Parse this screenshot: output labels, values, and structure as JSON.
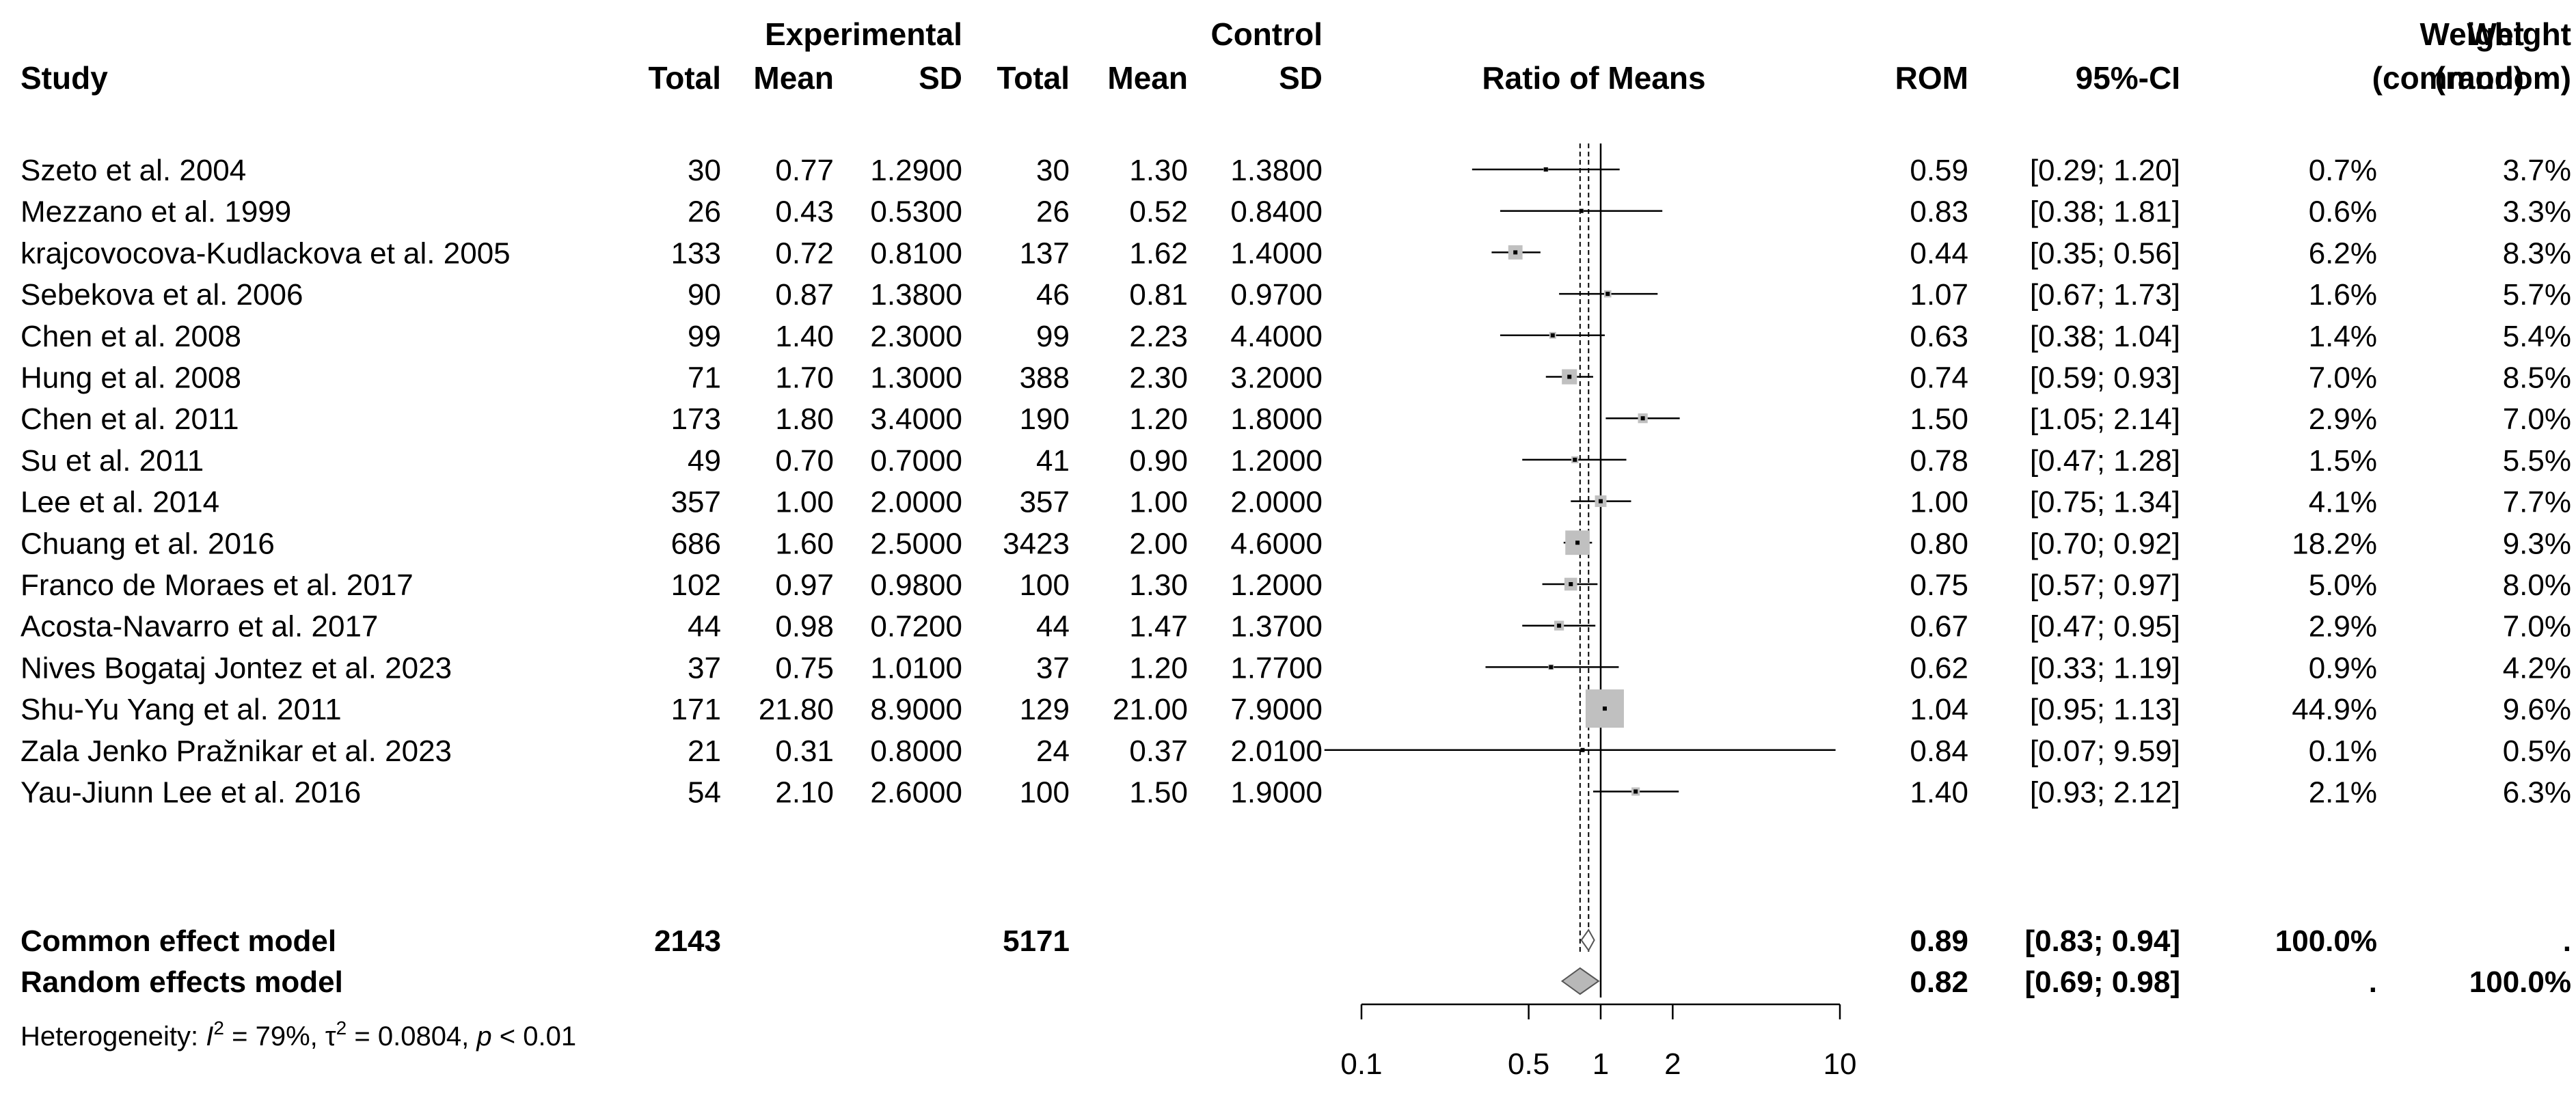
{
  "chart_data": {
    "type": "forest",
    "title": "",
    "columns": {
      "study": "Study",
      "group_experimental": "Experimental",
      "group_control": "Control",
      "total": "Total",
      "mean": "Mean",
      "sd": "SD",
      "plot": "Ratio of Means",
      "rom": "ROM",
      "ci": "95%-CI",
      "weight": "Weight",
      "weight_common": "(common)",
      "weight_random": "(random)"
    },
    "studies": [
      {
        "study": "Szeto et al. 2004",
        "e_total": "30",
        "e_mean": "0.77",
        "e_sd": "1.2900",
        "c_total": "30",
        "c_mean": "1.30",
        "c_sd": "1.3800",
        "rom_text": "0.59",
        "ci_text": "[0.29; 1.20]",
        "w_common": "0.7%",
        "w_random": "3.7%",
        "rom": 0.59,
        "lower": 0.29,
        "upper": 1.2,
        "weight_common": 0.7
      },
      {
        "study": "Mezzano et al. 1999",
        "e_total": "26",
        "e_mean": "0.43",
        "e_sd": "0.5300",
        "c_total": "26",
        "c_mean": "0.52",
        "c_sd": "0.8400",
        "rom_text": "0.83",
        "ci_text": "[0.38; 1.81]",
        "w_common": "0.6%",
        "w_random": "3.3%",
        "rom": 0.83,
        "lower": 0.38,
        "upper": 1.81,
        "weight_common": 0.6
      },
      {
        "study": "krajcovocova-Kudlackova et al. 2005",
        "e_total": "133",
        "e_mean": "0.72",
        "e_sd": "0.8100",
        "c_total": "137",
        "c_mean": "1.62",
        "c_sd": "1.4000",
        "rom_text": "0.44",
        "ci_text": "[0.35; 0.56]",
        "w_common": "6.2%",
        "w_random": "8.3%",
        "rom": 0.44,
        "lower": 0.35,
        "upper": 0.56,
        "weight_common": 6.2
      },
      {
        "study": "Sebekova et al. 2006",
        "e_total": "90",
        "e_mean": "0.87",
        "e_sd": "1.3800",
        "c_total": "46",
        "c_mean": "0.81",
        "c_sd": "0.9700",
        "rom_text": "1.07",
        "ci_text": "[0.67; 1.73]",
        "w_common": "1.6%",
        "w_random": "5.7%",
        "rom": 1.07,
        "lower": 0.67,
        "upper": 1.73,
        "weight_common": 1.6
      },
      {
        "study": "Chen et al. 2008",
        "e_total": "99",
        "e_mean": "1.40",
        "e_sd": "2.3000",
        "c_total": "99",
        "c_mean": "2.23",
        "c_sd": "4.4000",
        "rom_text": "0.63",
        "ci_text": "[0.38; 1.04]",
        "w_common": "1.4%",
        "w_random": "5.4%",
        "rom": 0.63,
        "lower": 0.38,
        "upper": 1.04,
        "weight_common": 1.4
      },
      {
        "study": "Hung et al. 2008",
        "e_total": "71",
        "e_mean": "1.70",
        "e_sd": "1.3000",
        "c_total": "388",
        "c_mean": "2.30",
        "c_sd": "3.2000",
        "rom_text": "0.74",
        "ci_text": "[0.59; 0.93]",
        "w_common": "7.0%",
        "w_random": "8.5%",
        "rom": 0.74,
        "lower": 0.59,
        "upper": 0.93,
        "weight_common": 7.0
      },
      {
        "study": "Chen et al. 2011",
        "e_total": "173",
        "e_mean": "1.80",
        "e_sd": "3.4000",
        "c_total": "190",
        "c_mean": "1.20",
        "c_sd": "1.8000",
        "rom_text": "1.50",
        "ci_text": "[1.05; 2.14]",
        "w_common": "2.9%",
        "w_random": "7.0%",
        "rom": 1.5,
        "lower": 1.05,
        "upper": 2.14,
        "weight_common": 2.9
      },
      {
        "study": "Su et al. 2011",
        "e_total": "49",
        "e_mean": "0.70",
        "e_sd": "0.7000",
        "c_total": "41",
        "c_mean": "0.90",
        "c_sd": "1.2000",
        "rom_text": "0.78",
        "ci_text": "[0.47; 1.28]",
        "w_common": "1.5%",
        "w_random": "5.5%",
        "rom": 0.78,
        "lower": 0.47,
        "upper": 1.28,
        "weight_common": 1.5
      },
      {
        "study": "Lee et al. 2014",
        "e_total": "357",
        "e_mean": "1.00",
        "e_sd": "2.0000",
        "c_total": "357",
        "c_mean": "1.00",
        "c_sd": "2.0000",
        "rom_text": "1.00",
        "ci_text": "[0.75; 1.34]",
        "w_common": "4.1%",
        "w_random": "7.7%",
        "rom": 1.0,
        "lower": 0.75,
        "upper": 1.34,
        "weight_common": 4.1
      },
      {
        "study": "Chuang et al. 2016",
        "e_total": "686",
        "e_mean": "1.60",
        "e_sd": "2.5000",
        "c_total": "3423",
        "c_mean": "2.00",
        "c_sd": "4.6000",
        "rom_text": "0.80",
        "ci_text": "[0.70; 0.92]",
        "w_common": "18.2%",
        "w_random": "9.3%",
        "rom": 0.8,
        "lower": 0.7,
        "upper": 0.92,
        "weight_common": 18.2
      },
      {
        "study": "Franco de Moraes et al. 2017",
        "e_total": "102",
        "e_mean": "0.97",
        "e_sd": "0.9800",
        "c_total": "100",
        "c_mean": "1.30",
        "c_sd": "1.2000",
        "rom_text": "0.75",
        "ci_text": "[0.57; 0.97]",
        "w_common": "5.0%",
        "w_random": "8.0%",
        "rom": 0.75,
        "lower": 0.57,
        "upper": 0.97,
        "weight_common": 5.0
      },
      {
        "study": "Acosta-Navarro et al. 2017",
        "e_total": "44",
        "e_mean": "0.98",
        "e_sd": "0.7200",
        "c_total": "44",
        "c_mean": "1.47",
        "c_sd": "1.3700",
        "rom_text": "0.67",
        "ci_text": "[0.47; 0.95]",
        "w_common": "2.9%",
        "w_random": "7.0%",
        "rom": 0.67,
        "lower": 0.47,
        "upper": 0.95,
        "weight_common": 2.9
      },
      {
        "study": "Nives Bogataj Jontez et al. 2023",
        "e_total": "37",
        "e_mean": "0.75",
        "e_sd": "1.0100",
        "c_total": "37",
        "c_mean": "1.20",
        "c_sd": "1.7700",
        "rom_text": "0.62",
        "ci_text": "[0.33; 1.19]",
        "w_common": "0.9%",
        "w_random": "4.2%",
        "rom": 0.62,
        "lower": 0.33,
        "upper": 1.19,
        "weight_common": 0.9
      },
      {
        "study": "Shu-Yu Yang et al. 2011",
        "e_total": "171",
        "e_mean": "21.80",
        "e_sd": "8.9000",
        "c_total": "129",
        "c_mean": "21.00",
        "c_sd": "7.9000",
        "rom_text": "1.04",
        "ci_text": "[0.95; 1.13]",
        "w_common": "44.9%",
        "w_random": "9.6%",
        "rom": 1.04,
        "lower": 0.95,
        "upper": 1.13,
        "weight_common": 44.9
      },
      {
        "study": "Zala Jenko Pražnikar et al. 2023",
        "e_total": "21",
        "e_mean": "0.31",
        "e_sd": "0.8000",
        "c_total": "24",
        "c_mean": "0.37",
        "c_sd": "2.0100",
        "rom_text": "0.84",
        "ci_text": "[0.07; 9.59]",
        "w_common": "0.1%",
        "w_random": "0.5%",
        "rom": 0.84,
        "lower": 0.07,
        "upper": 9.59,
        "weight_common": 0.1
      },
      {
        "study": "Yau-Jiunn Lee et al. 2016",
        "e_total": "54",
        "e_mean": "2.10",
        "e_sd": "2.6000",
        "c_total": "100",
        "c_mean": "1.50",
        "c_sd": "1.9000",
        "rom_text": "1.40",
        "ci_text": "[0.93; 2.12]",
        "w_common": "2.1%",
        "w_random": "6.3%",
        "rom": 1.4,
        "lower": 0.93,
        "upper": 2.12,
        "weight_common": 2.1
      }
    ],
    "pooled": [
      {
        "label": "Common effect model",
        "e_total": "2143",
        "c_total": "5171",
        "rom_text": "0.89",
        "ci_text": "[0.83; 0.94]",
        "w_common": "100.0%",
        "w_random": ".",
        "rom": 0.89,
        "lower": 0.83,
        "upper": 0.94
      },
      {
        "label": "Random effects model",
        "e_total": "",
        "c_total": "",
        "rom_text": "0.82",
        "ci_text": "[0.69; 0.98]",
        "w_common": ".",
        "w_random": "100.0%",
        "rom": 0.82,
        "lower": 0.69,
        "upper": 0.98
      }
    ],
    "heterogeneity": {
      "prefix": "Heterogeneity: ",
      "i2_sym": "I",
      "sup2": "2",
      "i2_val": " = 79%, ",
      "tau_sym": "τ",
      "tau_val": " = 0.0804, ",
      "p_sym": "p",
      "p_val": " < 0.01"
    },
    "x_axis": {
      "scale": "log",
      "range": [
        0.1,
        10
      ],
      "ticks": [
        0.1,
        0.5,
        1,
        2,
        10
      ],
      "tick_labels": [
        "0.1",
        "0.5",
        "1",
        "2",
        "10"
      ],
      "reference_line": 1
    }
  }
}
